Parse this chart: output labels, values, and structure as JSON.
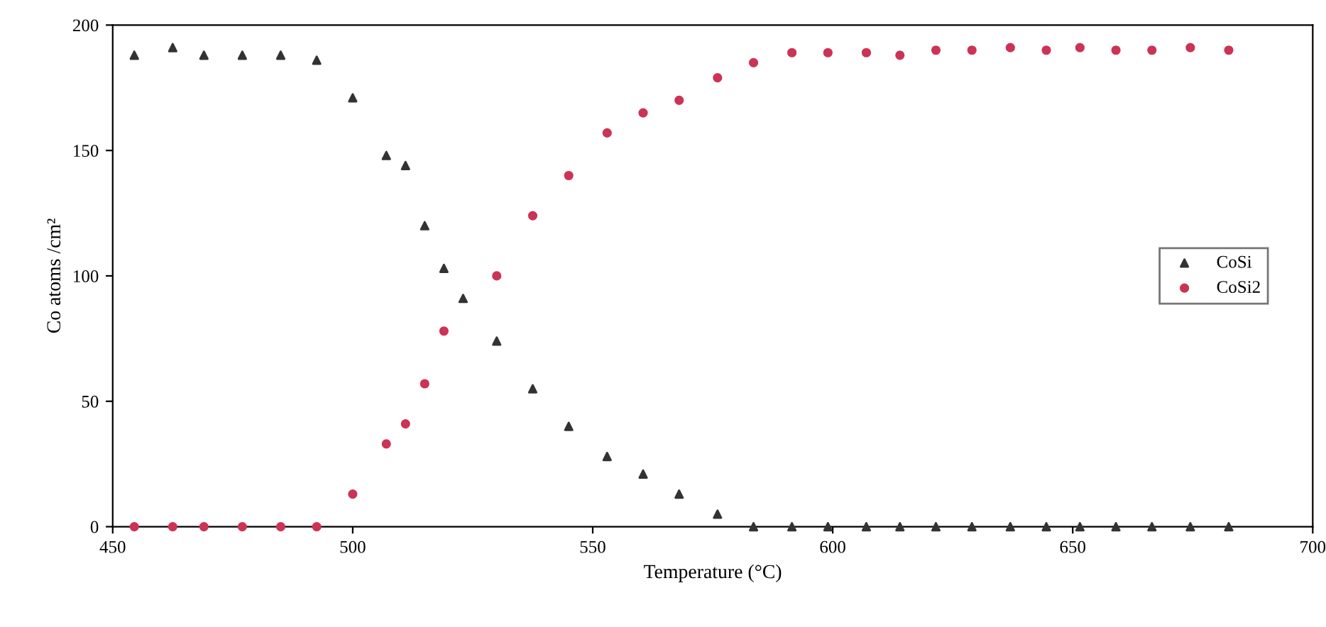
{
  "chart_data": {
    "type": "scatter",
    "xlabel": "Temperature (°C)",
    "ylabel": "Co atoms /cm²",
    "x": [
      454.5,
      462.5,
      469,
      477,
      485,
      492.5,
      500,
      507,
      511,
      515,
      519,
      523,
      530,
      537.5,
      545,
      553,
      560.5,
      568,
      576,
      583.5,
      591.5,
      599,
      607,
      614,
      621.5,
      629,
      637,
      644.5,
      651.5,
      659,
      666.5,
      674.5,
      682.5
    ],
    "series": [
      {
        "name": "CoSi",
        "color": "#333333",
        "marker": "triangle",
        "values": [
          188,
          191,
          188,
          188,
          188,
          186,
          171,
          148,
          144,
          120,
          103,
          91,
          74,
          55,
          40,
          28,
          21,
          13,
          5,
          0,
          0,
          0,
          0,
          0,
          0,
          0,
          0,
          0,
          0,
          0,
          0,
          0,
          0
        ]
      },
      {
        "name": "CoSi2",
        "color": "#cc3355",
        "marker": "circle",
        "values": [
          0,
          0,
          0,
          0,
          0,
          0,
          13,
          33,
          41,
          57,
          78,
          null,
          100,
          124,
          140,
          157,
          165,
          170,
          179,
          185,
          189,
          189,
          189,
          188,
          190,
          190,
          191,
          190,
          191,
          190,
          190,
          191,
          190
        ]
      }
    ],
    "xlim": [
      450,
      700
    ],
    "xticks": [
      450,
      500,
      550,
      600,
      650,
      700
    ],
    "ylim": [
      0,
      200
    ],
    "yticks": [
      0,
      50,
      100,
      150,
      200
    ],
    "grid": false,
    "legend": "right"
  }
}
